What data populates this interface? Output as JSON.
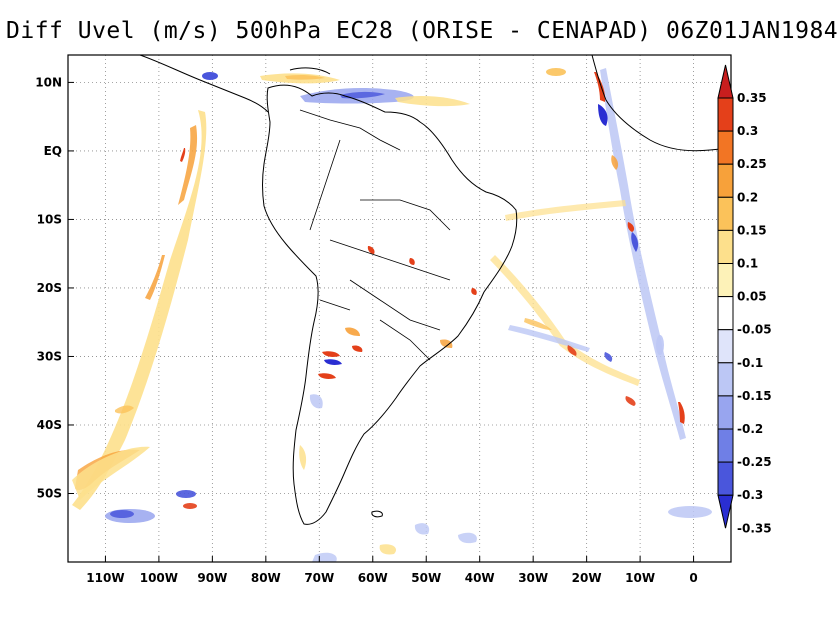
{
  "title": "Diff Uvel (m/s) 500hPa EC28 (ORISE - CENAPAD) 06Z01JAN1984",
  "map": {
    "type": "filled-contour-map",
    "region": "South America",
    "lon_range": [
      -117,
      7
    ],
    "lat_range": [
      -60,
      14
    ],
    "grid": true,
    "lat_ticks": [
      {
        "value": 10,
        "label": "10N"
      },
      {
        "value": 0,
        "label": "EQ"
      },
      {
        "value": -10,
        "label": "10S"
      },
      {
        "value": -20,
        "label": "20S"
      },
      {
        "value": -30,
        "label": "30S"
      },
      {
        "value": -40,
        "label": "40S"
      },
      {
        "value": -50,
        "label": "50S"
      }
    ],
    "lon_ticks": [
      {
        "value": -110,
        "label": "110W"
      },
      {
        "value": -100,
        "label": "100W"
      },
      {
        "value": -90,
        "label": "90W"
      },
      {
        "value": -80,
        "label": "80W"
      },
      {
        "value": -70,
        "label": "70W"
      },
      {
        "value": -60,
        "label": "60W"
      },
      {
        "value": -50,
        "label": "50W"
      },
      {
        "value": -40,
        "label": "40W"
      },
      {
        "value": -30,
        "label": "30W"
      },
      {
        "value": -20,
        "label": "20W"
      },
      {
        "value": -10,
        "label": "10W"
      },
      {
        "value": 0,
        "label": "0"
      }
    ]
  },
  "colorbar": {
    "placement": "right",
    "boundaries": [
      "0.35",
      "0.3",
      "0.25",
      "0.2",
      "0.15",
      "0.1",
      "0.05",
      "-0.05",
      "-0.1",
      "-0.15",
      "-0.2",
      "-0.25",
      "-0.3",
      "-0.35"
    ],
    "colors_top_to_bottom": [
      "#c81e1e",
      "#e4401a",
      "#f27524",
      "#f7a13a",
      "#fbc25a",
      "#fde08c",
      "#fdf2b8",
      "#ffffff",
      "#dfe4fa",
      "#bcc7f5",
      "#98a5ef",
      "#6f7fe6",
      "#4a56dc",
      "#2a2ed2"
    ]
  }
}
